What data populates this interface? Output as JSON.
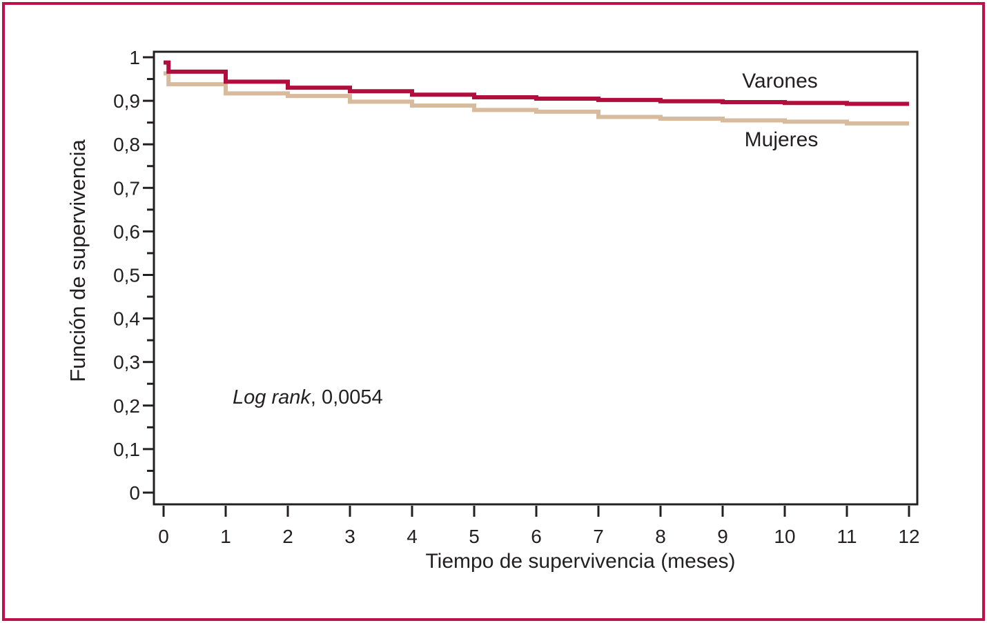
{
  "figure": {
    "border_color": "#BE1049",
    "background_color": "#FFFFFF",
    "text_color": "#231F20",
    "axis_color": "#231F20"
  },
  "chart_data": {
    "type": "line",
    "subtype": "kaplan-meier-step",
    "title": "",
    "xlabel": "Tiempo de supervivencia (meses)",
    "ylabel": "Función de supervivencia",
    "xlim": [
      0,
      12
    ],
    "ylim": [
      0,
      1
    ],
    "grid": false,
    "legend_position": "inline-labels-right",
    "x_ticks": {
      "values": [
        0,
        1,
        2,
        3,
        4,
        5,
        6,
        7,
        8,
        9,
        10,
        11,
        12
      ],
      "labels": [
        "0",
        "1",
        "2",
        "3",
        "4",
        "5",
        "6",
        "7",
        "8",
        "9",
        "10",
        "11",
        "12"
      ]
    },
    "y_ticks": {
      "values": [
        0,
        0.1,
        0.2,
        0.3,
        0.4,
        0.5,
        0.6,
        0.7,
        0.8,
        0.9,
        1
      ],
      "labels": [
        "0",
        "0,1",
        "0,2",
        "0,3",
        "0,4",
        "0,5",
        "0,6",
        "0,7",
        "0,8",
        "0,9",
        "1"
      ],
      "minor_values": [
        0.05,
        0.15,
        0.25,
        0.35,
        0.45,
        0.55,
        0.65,
        0.75,
        0.85,
        0.95
      ]
    },
    "annotation": {
      "italic_part": "Log rank",
      "value_part": ", 0,0054"
    },
    "series": [
      {
        "name": "Mujeres",
        "color": "#D8BB9D",
        "points": [
          [
            0,
            0.963
          ],
          [
            0.08,
            0.938
          ],
          [
            1,
            0.917
          ],
          [
            2,
            0.911
          ],
          [
            3,
            0.898
          ],
          [
            4,
            0.889
          ],
          [
            5,
            0.879
          ],
          [
            6,
            0.875
          ],
          [
            7,
            0.863
          ],
          [
            8,
            0.859
          ],
          [
            9,
            0.855
          ],
          [
            10,
            0.852
          ],
          [
            11,
            0.848
          ],
          [
            12,
            0.848
          ]
        ]
      },
      {
        "name": "Varones",
        "color": "#B00E3C",
        "points": [
          [
            0,
            0.988
          ],
          [
            0.08,
            0.967
          ],
          [
            1,
            0.944
          ],
          [
            2,
            0.93
          ],
          [
            3,
            0.922
          ],
          [
            4,
            0.914
          ],
          [
            5,
            0.908
          ],
          [
            6,
            0.905
          ],
          [
            7,
            0.902
          ],
          [
            8,
            0.899
          ],
          [
            9,
            0.897
          ],
          [
            10,
            0.895
          ],
          [
            11,
            0.893
          ],
          [
            12,
            0.893
          ]
        ]
      }
    ]
  }
}
